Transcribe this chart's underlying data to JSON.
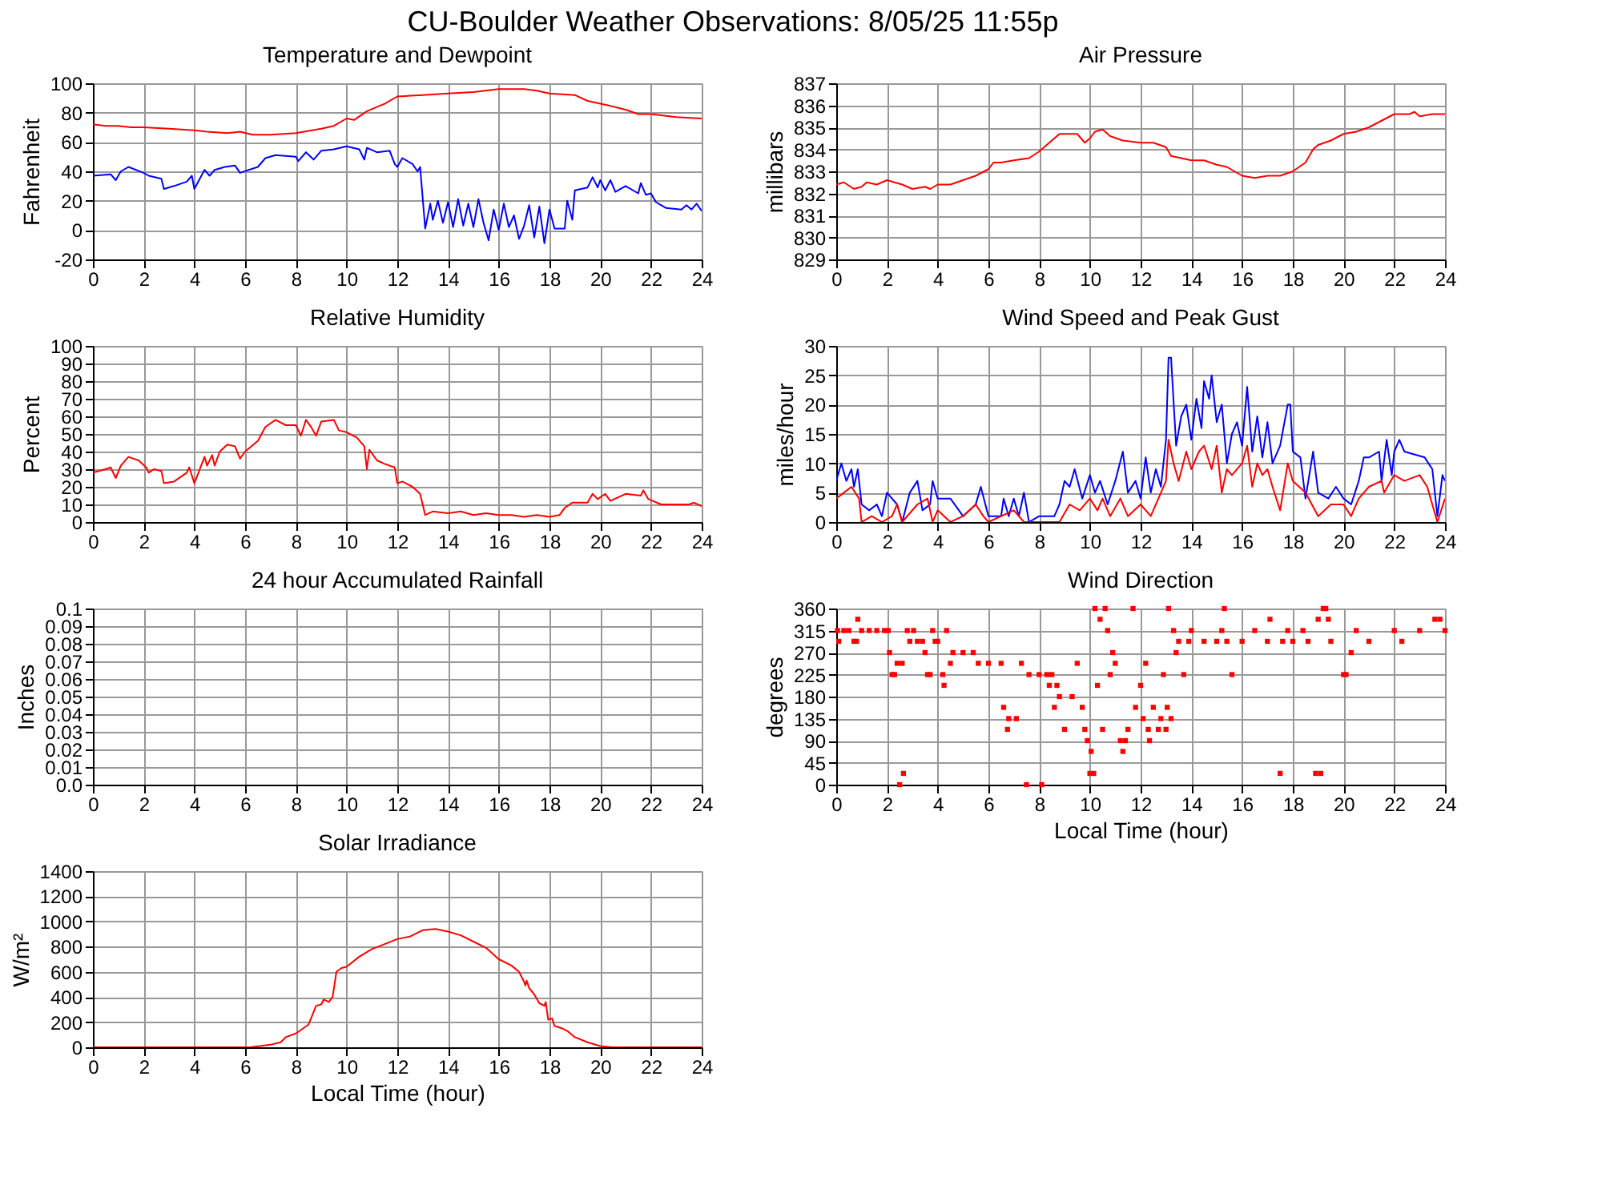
{
  "chart_data": [
    {
      "type": "line",
      "title": "Temperature and Dewpoint",
      "annotations": [
        "CU-Boulder Weather Observations: 8/05/25 11:55p"
      ],
      "ylabel": "Fahrenheit",
      "xlim": [
        0,
        24
      ],
      "xticks": [
        0,
        2,
        4,
        6,
        8,
        10,
        12,
        14,
        16,
        18,
        20,
        22,
        24
      ],
      "ylim": [
        -20,
        100
      ],
      "yticks": [
        -20,
        0,
        20,
        40,
        60,
        80,
        100
      ],
      "grid": true,
      "series": [
        {
          "color": "#ff0000",
          "x": [
            0,
            0.5,
            1,
            1.5,
            2,
            3,
            4,
            4.5,
            5.3,
            5.8,
            6.3,
            7,
            8,
            9,
            9.5,
            10,
            10.3,
            10.8,
            11.5,
            12,
            13,
            14,
            15,
            16,
            17,
            17.5,
            18,
            19,
            19.5,
            20.3,
            21,
            21.5,
            22,
            23,
            24
          ],
          "values": [
            72,
            71,
            71,
            70,
            70,
            69,
            68,
            67,
            66,
            67,
            65,
            65,
            66,
            69,
            71,
            76,
            75,
            81,
            86,
            91,
            92,
            93,
            94,
            96,
            96,
            95,
            93,
            92,
            88,
            85,
            82,
            79,
            79,
            77,
            76
          ]
        },
        {
          "color": "#0000ff",
          "x": [
            0,
            0.7,
            0.9,
            1.1,
            1.4,
            2,
            2.2,
            2.7,
            2.8,
            3.2,
            3.7,
            3.9,
            4.0,
            4.4,
            4.6,
            4.8,
            5.2,
            5.6,
            5.8,
            6.5,
            6.8,
            7.2,
            8,
            8.1,
            8.4,
            8.7,
            9,
            9.5,
            10,
            10.5,
            10.7,
            10.8,
            11.2,
            11.7,
            11.9,
            12,
            12.2,
            12.6,
            12.8,
            12.9,
            13.1,
            13.3,
            13.4,
            13.6,
            13.8,
            14,
            14.2,
            14.4,
            14.6,
            14.8,
            15,
            15.2,
            15.4,
            15.6,
            15.8,
            16,
            16.2,
            16.4,
            16.6,
            16.8,
            17,
            17.2,
            17.4,
            17.6,
            17.8,
            18,
            18.2,
            18.6,
            18.7,
            18.9,
            19,
            19.5,
            19.7,
            19.9,
            20,
            20.2,
            20.4,
            20.6,
            21,
            21.5,
            21.6,
            21.8,
            22,
            22.2,
            22.6,
            23.2,
            23.4,
            23.6,
            23.8,
            24
          ],
          "values": [
            37,
            38,
            34,
            40,
            43,
            39,
            37,
            35,
            28,
            30,
            33,
            37,
            28,
            41,
            37,
            41,
            43,
            44,
            39,
            43,
            49,
            51,
            50,
            47,
            53,
            48,
            54,
            55,
            57,
            55,
            48,
            56,
            53,
            54,
            45,
            43,
            49,
            45,
            40,
            43,
            1,
            18,
            7,
            20,
            5,
            19,
            2,
            21,
            3,
            18,
            2,
            21,
            5,
            -7,
            14,
            0,
            18,
            2,
            10,
            -6,
            3,
            17,
            -5,
            16,
            -9,
            14,
            1,
            1,
            20,
            7,
            27,
            29,
            36,
            29,
            34,
            27,
            34,
            26,
            30,
            25,
            32,
            24,
            25,
            19,
            15,
            14,
            17,
            14,
            18,
            13
          ]
        }
      ]
    },
    {
      "type": "line",
      "title": "Air Pressure",
      "ylabel": "millibars",
      "xlim": [
        0,
        24
      ],
      "xticks": [
        0,
        2,
        4,
        6,
        8,
        10,
        12,
        14,
        16,
        18,
        20,
        22,
        24
      ],
      "ylim": [
        829,
        837
      ],
      "yticks": [
        829,
        830,
        831,
        832,
        833,
        834,
        835,
        836,
        837
      ],
      "grid": true,
      "series": [
        {
          "color": "#ff0000",
          "x": [
            0,
            0.3,
            0.7,
            1,
            1.2,
            1.6,
            2,
            2.6,
            3,
            3.5,
            3.7,
            4,
            4.5,
            5,
            5.5,
            6,
            6.2,
            6.5,
            7,
            7.6,
            8,
            8.4,
            8.8,
            9.5,
            9.8,
            10,
            10.2,
            10.5,
            10.8,
            11.3,
            12,
            12.5,
            13,
            13.2,
            13.6,
            14,
            14.5,
            15,
            15.4,
            16,
            16.5,
            17,
            17.5,
            18,
            18.5,
            18.8,
            19,
            19.5,
            20,
            20.5,
            21,
            21.5,
            22,
            22.6,
            22.8,
            23,
            23.5,
            24
          ],
          "values": [
            832.4,
            832.5,
            832.2,
            832.3,
            832.5,
            832.4,
            832.6,
            832.4,
            832.2,
            832.3,
            832.2,
            832.4,
            832.4,
            832.6,
            832.8,
            833.1,
            833.4,
            833.4,
            833.5,
            833.6,
            833.9,
            834.3,
            834.7,
            834.7,
            834.3,
            834.5,
            834.8,
            834.9,
            834.6,
            834.4,
            834.3,
            834.3,
            834.1,
            833.7,
            833.6,
            833.5,
            833.5,
            833.3,
            833.2,
            832.8,
            832.7,
            832.8,
            832.8,
            833.0,
            833.4,
            834.0,
            834.2,
            834.4,
            834.7,
            834.8,
            835.0,
            835.3,
            835.6,
            835.6,
            835.7,
            835.5,
            835.6,
            835.6
          ]
        }
      ]
    },
    {
      "type": "line",
      "title": "Relative Humidity",
      "ylabel": "Percent",
      "xlim": [
        0,
        24
      ],
      "xticks": [
        0,
        2,
        4,
        6,
        8,
        10,
        12,
        14,
        16,
        18,
        20,
        22,
        24
      ],
      "ylim": [
        0,
        100
      ],
      "yticks": [
        0,
        10,
        20,
        30,
        40,
        50,
        60,
        70,
        80,
        90,
        100
      ],
      "grid": true,
      "series": [
        {
          "color": "#ff0000",
          "x": [
            0,
            0.5,
            0.7,
            0.9,
            1.1,
            1.4,
            1.8,
            2.1,
            2.2,
            2.4,
            2.7,
            2.8,
            3.2,
            3.7,
            3.8,
            4,
            4.4,
            4.5,
            4.7,
            4.8,
            5,
            5.3,
            5.6,
            5.8,
            6,
            6.5,
            6.8,
            7.2,
            7.6,
            8,
            8.2,
            8.4,
            8.6,
            8.8,
            9,
            9.5,
            9.7,
            10,
            10.4,
            10.7,
            10.8,
            10.9,
            11.2,
            11.5,
            11.9,
            12,
            12.2,
            12.6,
            12.9,
            13.1,
            13.4,
            14,
            14.5,
            15,
            15.5,
            16,
            16.5,
            17,
            17.5,
            18,
            18.4,
            18.6,
            18.9,
            19.5,
            19.7,
            19.9,
            20.2,
            20.4,
            21,
            21.6,
            21.7,
            21.9,
            22.4,
            23,
            23.5,
            23.7,
            24
          ],
          "values": [
            28,
            30,
            31,
            25,
            32,
            37,
            35,
            31,
            28,
            30,
            29,
            22,
            23,
            28,
            31,
            22,
            37,
            32,
            38,
            32,
            40,
            44,
            43,
            36,
            40,
            46,
            54,
            58,
            55,
            55,
            49,
            58,
            54,
            49,
            57,
            58,
            52,
            51,
            48,
            43,
            30,
            41,
            35,
            33,
            31,
            22,
            23,
            20,
            16,
            4,
            6,
            5,
            6,
            4,
            5,
            4,
            4,
            3,
            4,
            3,
            4,
            8,
            11,
            11,
            16,
            13,
            16,
            12,
            16,
            15,
            18,
            13,
            10,
            10,
            10,
            11,
            9
          ]
        }
      ]
    },
    {
      "type": "line",
      "title": "Wind Speed and Peak Gust",
      "ylabel": "miles/hour",
      "xlim": [
        0,
        24
      ],
      "xticks": [
        0,
        2,
        4,
        6,
        8,
        10,
        12,
        14,
        16,
        18,
        20,
        22,
        24
      ],
      "ylim": [
        0,
        30
      ],
      "yticks": [
        0,
        5,
        10,
        15,
        20,
        25,
        30
      ],
      "grid": true,
      "series": [
        {
          "color": "#0000ff",
          "x": [
            0,
            0.2,
            0.4,
            0.6,
            0.7,
            0.85,
            1,
            1.3,
            1.6,
            1.8,
            2,
            2.4,
            2.6,
            2.9,
            3.2,
            3.4,
            3.7,
            3.8,
            4,
            4.5,
            5,
            5.5,
            5.7,
            6,
            6.5,
            6.6,
            6.8,
            7,
            7.2,
            7.4,
            7.6,
            8,
            8.6,
            8.8,
            9,
            9.2,
            9.4,
            9.7,
            10,
            10.2,
            10.4,
            10.7,
            11,
            11.3,
            11.5,
            11.8,
            12,
            12.2,
            12.4,
            12.6,
            12.8,
            13,
            13.1,
            13.2,
            13.4,
            13.6,
            13.8,
            14,
            14.2,
            14.4,
            14.5,
            14.7,
            14.8,
            15,
            15.2,
            15.4,
            15.6,
            15.8,
            16,
            16.2,
            16.4,
            16.6,
            16.8,
            17,
            17.2,
            17.5,
            17.8,
            17.9,
            18,
            18.3,
            18.5,
            18.8,
            19,
            19.4,
            19.7,
            20,
            20.3,
            20.6,
            20.8,
            21,
            21.4,
            21.5,
            21.7,
            21.9,
            22,
            22.2,
            22.4,
            23.2,
            23.5,
            23.7,
            23.9,
            24
          ],
          "values": [
            7,
            10,
            7,
            9,
            6,
            9,
            3,
            2,
            3,
            1,
            5,
            3,
            0,
            5,
            7,
            2,
            3,
            7,
            4,
            4,
            1,
            3,
            6,
            1,
            1,
            4,
            1,
            4,
            1,
            5,
            0,
            1,
            1,
            3,
            7,
            6,
            9,
            4,
            8,
            5,
            7,
            3,
            7,
            12,
            5,
            7,
            4,
            11,
            5,
            9,
            6,
            14,
            28,
            28,
            13,
            18,
            20,
            14,
            21,
            16,
            24,
            21,
            25,
            17,
            20,
            10,
            15,
            17,
            13,
            23,
            12,
            18,
            11,
            17,
            10,
            13,
            20,
            20,
            12,
            11,
            4,
            12,
            5,
            4,
            6,
            4,
            3,
            7,
            11,
            11,
            12,
            7,
            14,
            8,
            12,
            14,
            12,
            11,
            9,
            1,
            8,
            7
          ]
        },
        {
          "color": "#ff0000",
          "x": [
            0,
            0.3,
            0.6,
            0.9,
            1,
            1.4,
            1.8,
            2.2,
            2.4,
            2.6,
            3.2,
            3.6,
            3.8,
            4,
            4.5,
            5,
            5.5,
            5.8,
            6,
            7,
            7.4,
            8.8,
            9.2,
            9.6,
            10,
            10.3,
            10.5,
            10.8,
            11.2,
            11.5,
            12,
            12.4,
            12.8,
            13,
            13.1,
            13.3,
            13.5,
            13.8,
            14,
            14.3,
            14.5,
            14.8,
            15,
            15.2,
            15.4,
            15.6,
            16,
            16.2,
            16.4,
            16.6,
            16.8,
            17,
            17.2,
            17.5,
            17.8,
            18,
            18.5,
            19,
            19.5,
            20,
            20.3,
            20.6,
            21,
            21.5,
            21.6,
            22,
            22.4,
            23,
            23.3,
            23.7,
            24
          ],
          "values": [
            4,
            5,
            6,
            4,
            0,
            1,
            0,
            1,
            3,
            0,
            3,
            4,
            0,
            2,
            0,
            1,
            3,
            1,
            0,
            2,
            0,
            0,
            3,
            2,
            4,
            2,
            4,
            1,
            4,
            1,
            3,
            1,
            5,
            7,
            14,
            10,
            7,
            12,
            9,
            12,
            13,
            9,
            13,
            5,
            9,
            8,
            10,
            13,
            6,
            10,
            8,
            9,
            6,
            2,
            10,
            7,
            5,
            1,
            3,
            3,
            1,
            4,
            6,
            7,
            5,
            8,
            7,
            8,
            6,
            0,
            4
          ]
        }
      ]
    },
    {
      "type": "line",
      "title": "24 hour Accumulated Rainfall",
      "ylabel": "Inches",
      "xlim": [
        0,
        24
      ],
      "xticks": [
        0,
        2,
        4,
        6,
        8,
        10,
        12,
        14,
        16,
        18,
        20,
        22,
        24
      ],
      "ylim": [
        0,
        0.1
      ],
      "yticks": [
        {
          "value": 0,
          "label": "0.0"
        },
        0.01,
        0.02,
        0.03,
        0.04,
        0.05,
        0.06,
        0.07,
        0.08,
        0.09,
        0.1
      ],
      "grid": true
    },
    {
      "type": "scatter",
      "title": "Wind Direction",
      "ylabel": "degrees",
      "xlabel": "Local Time (hour)",
      "marker": "square",
      "xlim": [
        0,
        24
      ],
      "xticks": [
        0,
        2,
        4,
        6,
        8,
        10,
        12,
        14,
        16,
        18,
        20,
        22,
        24
      ],
      "ylim": [
        0,
        360
      ],
      "yticks": [
        0,
        45,
        90,
        135,
        180,
        225,
        270,
        315,
        360
      ],
      "grid": true,
      "series": [
        {
          "color": "#ff0000",
          "x": [
            0.05,
            0.1,
            0.3,
            0.5,
            0.7,
            0.8,
            0.85,
            1,
            1.3,
            1.6,
            1.9,
            2.05,
            2.1,
            2.2,
            2.3,
            2.4,
            2.5,
            2.6,
            2.65,
            2.8,
            2.9,
            3.05,
            3.2,
            3.4,
            3.5,
            3.6,
            3.7,
            3.8,
            3.9,
            4.0,
            4.2,
            4.25,
            4.35,
            4.5,
            4.6,
            5,
            5.4,
            5.6,
            6,
            6.5,
            6.6,
            6.75,
            6.8,
            7.1,
            7.3,
            7.5,
            7.6,
            8,
            8.1,
            8.3,
            8.4,
            8.5,
            8.6,
            8.7,
            8.8,
            9,
            9.3,
            9.5,
            9.7,
            9.8,
            9.9,
            10.0,
            10.05,
            10.15,
            10.2,
            10.3,
            10.4,
            10.5,
            10.6,
            10.7,
            10.8,
            10.9,
            11,
            11.2,
            11.3,
            11.4,
            11.5,
            11.7,
            11.8,
            12,
            12.1,
            12.2,
            12.3,
            12.35,
            12.5,
            12.7,
            12.8,
            12.9,
            13.0,
            13.05,
            13.1,
            13.2,
            13.3,
            13.4,
            13.5,
            13.7,
            13.9,
            14,
            14.5,
            15,
            15.2,
            15.3,
            15.4,
            15.6,
            16,
            16.5,
            17,
            17.1,
            17.5,
            17.6,
            17.8,
            18,
            18.4,
            18.6,
            18.9,
            19,
            19.1,
            19.2,
            19.3,
            19.4,
            19.5,
            20,
            20.1,
            20.3,
            20.5,
            21,
            22,
            22.3,
            23,
            23.6,
            23.8,
            24
          ],
          "values": [
            315,
            293,
            315,
            315,
            293,
            293,
            338,
            315,
            315,
            315,
            315,
            315,
            270,
            225,
            225,
            248,
            0,
            248,
            23,
            315,
            293,
            315,
            293,
            293,
            270,
            225,
            225,
            315,
            293,
            293,
            225,
            203,
            315,
            248,
            270,
            270,
            270,
            248,
            248,
            248,
            158,
            113,
            135,
            135,
            248,
            0,
            225,
            225,
            0,
            225,
            203,
            225,
            158,
            203,
            180,
            113,
            180,
            248,
            158,
            113,
            90,
            23,
            68,
            23,
            360,
            203,
            338,
            113,
            360,
            315,
            225,
            270,
            248,
            90,
            68,
            90,
            113,
            360,
            158,
            203,
            135,
            248,
            113,
            90,
            158,
            113,
            135,
            225,
            113,
            158,
            360,
            135,
            315,
            270,
            293,
            225,
            293,
            315,
            293,
            293,
            315,
            360,
            293,
            225,
            293,
            315,
            293,
            338,
            23,
            293,
            315,
            293,
            315,
            293,
            23,
            338,
            23,
            360,
            360,
            338,
            293,
            225,
            225,
            270,
            315,
            293,
            315,
            293,
            315,
            338,
            338,
            315
          ]
        }
      ]
    },
    {
      "type": "line",
      "title": "Solar Irradiance",
      "ylabel": "W/m²",
      "xlabel": "Local Time (hour)",
      "xlim": [
        0,
        24
      ],
      "xticks": [
        0,
        2,
        4,
        6,
        8,
        10,
        12,
        14,
        16,
        18,
        20,
        22,
        24
      ],
      "ylim": [
        0,
        1400
      ],
      "yticks": [
        0,
        200,
        400,
        600,
        800,
        1000,
        1200,
        1400
      ],
      "grid": true,
      "series": [
        {
          "color": "#ff0000",
          "x": [
            0,
            6.2,
            7,
            7.4,
            7.6,
            8,
            8.5,
            8.8,
            9,
            9.1,
            9.3,
            9.45,
            9.6,
            9.8,
            10,
            10.5,
            11,
            11.5,
            12,
            12.5,
            13,
            13.5,
            14,
            14.5,
            15,
            15.5,
            16,
            16.5,
            16.8,
            17,
            17.05,
            17.1,
            17.2,
            17.4,
            17.6,
            17.8,
            17.85,
            17.95,
            18.1,
            18.2,
            18.5,
            18.7,
            19,
            19.5,
            20,
            20.5,
            24
          ],
          "values": [
            0,
            0,
            20,
            40,
            80,
            110,
            180,
            330,
            340,
            380,
            360,
            400,
            600,
            630,
            640,
            720,
            780,
            820,
            860,
            880,
            930,
            940,
            920,
            890,
            840,
            790,
            700,
            650,
            600,
            520,
            490,
            530,
            470,
            420,
            350,
            330,
            360,
            220,
            230,
            170,
            150,
            130,
            80,
            40,
            10,
            0,
            0
          ]
        }
      ]
    }
  ]
}
